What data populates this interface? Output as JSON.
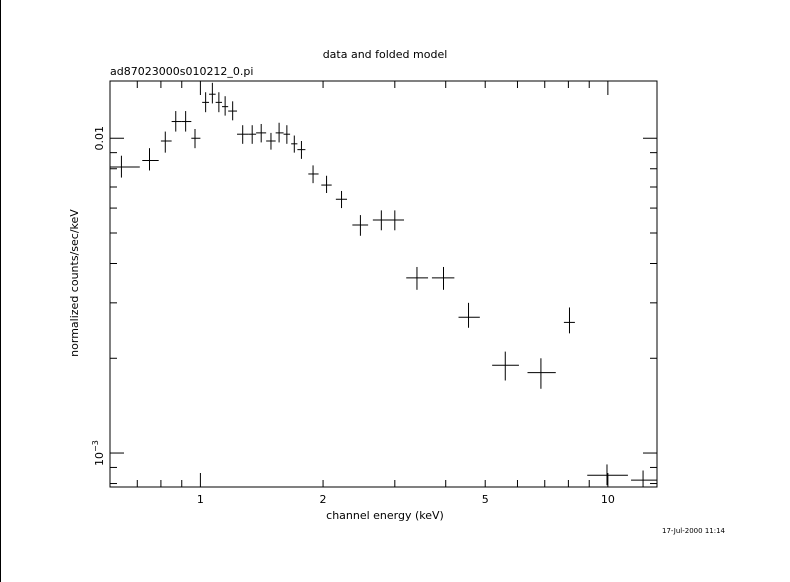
{
  "chart_data": {
    "type": "scatter",
    "title": "data and folded model",
    "subtitle": "ad87023000s010212_0.pi",
    "xlabel": "channel energy (keV)",
    "ylabel": "normalized counts/sec/keV",
    "timestamp": "17-Jul-2000 11:14",
    "x_scale": "log",
    "y_scale": "log",
    "xlim": [
      0.6,
      13.2
    ],
    "ylim": [
      0.00078,
      0.0152
    ],
    "x_ticks": [
      {
        "value": 1,
        "label": "1"
      },
      {
        "value": 2,
        "label": "2"
      },
      {
        "value": 5,
        "label": "5"
      },
      {
        "value": 10,
        "label": "10"
      }
    ],
    "y_ticks": [
      {
        "value": 0.01,
        "label": "0.01"
      },
      {
        "value": 0.001,
        "label": "10",
        "exponent": "−3"
      }
    ],
    "points": [
      {
        "x": 0.64,
        "xlo": 0.58,
        "xhi": 0.71,
        "y": 0.0081,
        "ylo": 0.0075,
        "yhi": 0.0088
      },
      {
        "x": 0.75,
        "xlo": 0.72,
        "xhi": 0.79,
        "y": 0.0085,
        "ylo": 0.0079,
        "yhi": 0.0093
      },
      {
        "x": 0.82,
        "xlo": 0.8,
        "xhi": 0.85,
        "y": 0.0098,
        "ylo": 0.009,
        "yhi": 0.0105
      },
      {
        "x": 0.87,
        "xlo": 0.85,
        "xhi": 0.9,
        "y": 0.0113,
        "ylo": 0.0105,
        "yhi": 0.0122
      },
      {
        "x": 0.92,
        "xlo": 0.9,
        "xhi": 0.95,
        "y": 0.0113,
        "ylo": 0.0105,
        "yhi": 0.0122
      },
      {
        "x": 0.97,
        "xlo": 0.95,
        "xhi": 1.0,
        "y": 0.01,
        "ylo": 0.0093,
        "yhi": 0.0107
      },
      {
        "x": 1.03,
        "xlo": 1.01,
        "xhi": 1.05,
        "y": 0.013,
        "ylo": 0.0121,
        "yhi": 0.014
      },
      {
        "x": 1.07,
        "xlo": 1.05,
        "xhi": 1.09,
        "y": 0.0138,
        "ylo": 0.0129,
        "yhi": 0.015
      },
      {
        "x": 1.11,
        "xlo": 1.09,
        "xhi": 1.13,
        "y": 0.013,
        "ylo": 0.0121,
        "yhi": 0.014
      },
      {
        "x": 1.15,
        "xlo": 1.13,
        "xhi": 1.17,
        "y": 0.0126,
        "ylo": 0.0118,
        "yhi": 0.0136
      },
      {
        "x": 1.2,
        "xlo": 1.17,
        "xhi": 1.23,
        "y": 0.0122,
        "ylo": 0.0114,
        "yhi": 0.0131
      },
      {
        "x": 1.27,
        "xlo": 1.23,
        "xhi": 1.31,
        "y": 0.0103,
        "ylo": 0.0096,
        "yhi": 0.011
      },
      {
        "x": 1.34,
        "xlo": 1.31,
        "xhi": 1.37,
        "y": 0.0103,
        "ylo": 0.0096,
        "yhi": 0.011
      },
      {
        "x": 1.41,
        "xlo": 1.37,
        "xhi": 1.45,
        "y": 0.0104,
        "ylo": 0.0097,
        "yhi": 0.0111
      },
      {
        "x": 1.49,
        "xlo": 1.45,
        "xhi": 1.53,
        "y": 0.0098,
        "ylo": 0.0092,
        "yhi": 0.0104
      },
      {
        "x": 1.56,
        "xlo": 1.53,
        "xhi": 1.6,
        "y": 0.0104,
        "ylo": 0.0097,
        "yhi": 0.0112
      },
      {
        "x": 1.63,
        "xlo": 1.6,
        "xhi": 1.66,
        "y": 0.0103,
        "ylo": 0.0096,
        "yhi": 0.011
      },
      {
        "x": 1.7,
        "xlo": 1.67,
        "xhi": 1.73,
        "y": 0.0096,
        "ylo": 0.009,
        "yhi": 0.0102
      },
      {
        "x": 1.77,
        "xlo": 1.73,
        "xhi": 1.81,
        "y": 0.0092,
        "ylo": 0.0086,
        "yhi": 0.0098
      },
      {
        "x": 1.89,
        "xlo": 1.84,
        "xhi": 1.95,
        "y": 0.0077,
        "ylo": 0.0072,
        "yhi": 0.0082
      },
      {
        "x": 2.04,
        "xlo": 1.98,
        "xhi": 2.1,
        "y": 0.0071,
        "ylo": 0.0067,
        "yhi": 0.0076
      },
      {
        "x": 2.22,
        "xlo": 2.15,
        "xhi": 2.29,
        "y": 0.0064,
        "ylo": 0.006,
        "yhi": 0.0068
      },
      {
        "x": 2.47,
        "xlo": 2.36,
        "xhi": 2.58,
        "y": 0.0053,
        "ylo": 0.0049,
        "yhi": 0.0057
      },
      {
        "x": 2.78,
        "xlo": 2.65,
        "xhi": 2.92,
        "y": 0.0055,
        "ylo": 0.0051,
        "yhi": 0.0059
      },
      {
        "x": 3.0,
        "xlo": 2.85,
        "xhi": 3.16,
        "y": 0.0055,
        "ylo": 0.0051,
        "yhi": 0.0059
      },
      {
        "x": 3.4,
        "xlo": 3.2,
        "xhi": 3.62,
        "y": 0.0036,
        "ylo": 0.0033,
        "yhi": 0.0039
      },
      {
        "x": 3.95,
        "xlo": 3.7,
        "xhi": 4.2,
        "y": 0.0036,
        "ylo": 0.0033,
        "yhi": 0.0039
      },
      {
        "x": 4.55,
        "xlo": 4.3,
        "xhi": 4.85,
        "y": 0.0027,
        "ylo": 0.0025,
        "yhi": 0.003
      },
      {
        "x": 5.6,
        "xlo": 5.2,
        "xhi": 6.05,
        "y": 0.0019,
        "ylo": 0.0017,
        "yhi": 0.0021
      },
      {
        "x": 6.85,
        "xlo": 6.35,
        "xhi": 7.45,
        "y": 0.0018,
        "ylo": 0.0016,
        "yhi": 0.002
      },
      {
        "x": 8.05,
        "xlo": 7.8,
        "xhi": 8.3,
        "y": 0.0026,
        "ylo": 0.0024,
        "yhi": 0.0029
      },
      {
        "x": 9.95,
        "xlo": 8.9,
        "xhi": 11.2,
        "y": 0.00085,
        "ylo": 0.00079,
        "yhi": 0.00092
      },
      {
        "x": 12.2,
        "xlo": 11.4,
        "xhi": 13.2,
        "y": 0.00082,
        "ylo": 0.00077,
        "yhi": 0.00088
      }
    ]
  }
}
